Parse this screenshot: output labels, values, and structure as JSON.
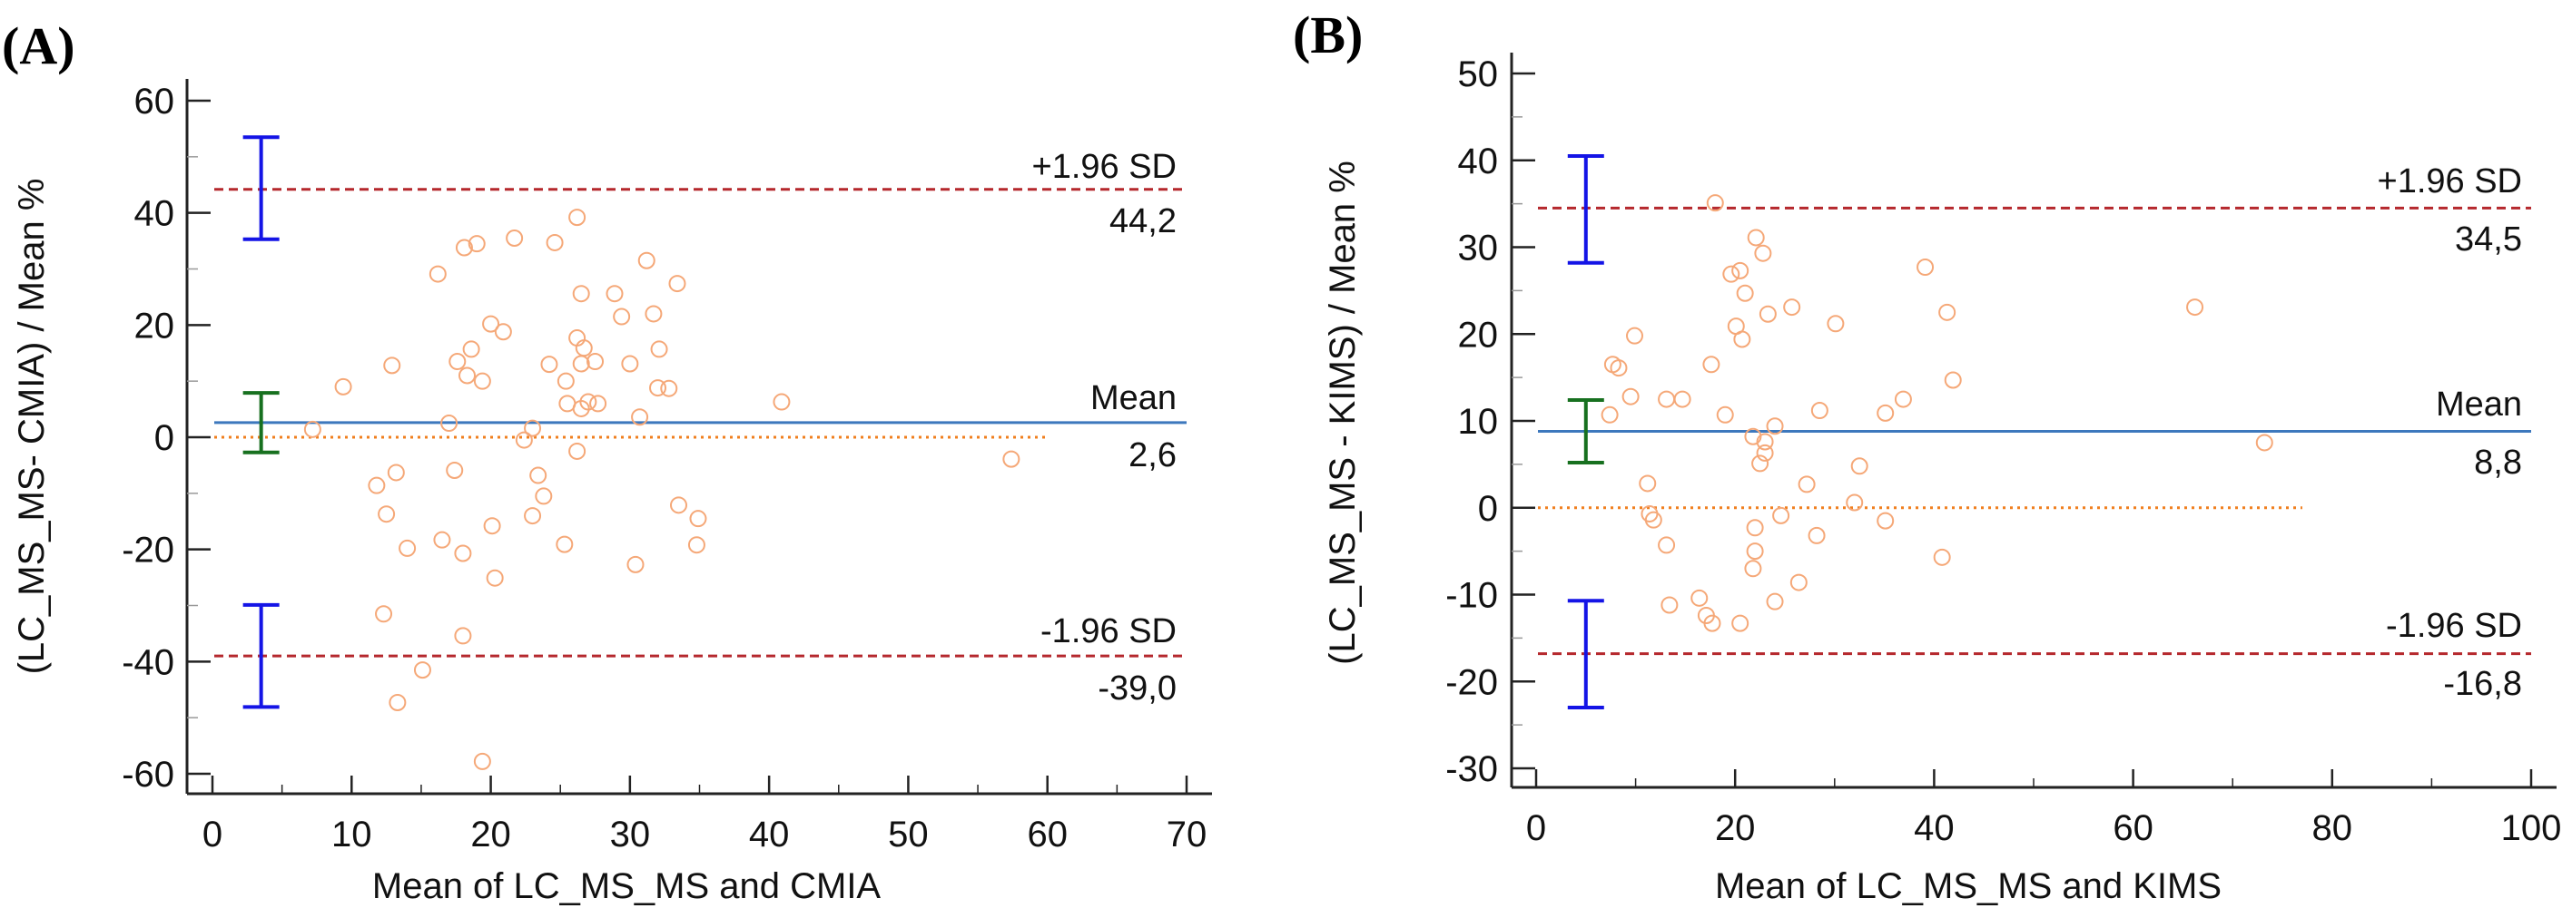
{
  "chart_data": [
    {
      "type": "scatter",
      "panel_label": "(A)",
      "title": "",
      "xlabel": "Mean of LC_MS_MS and CMIA",
      "ylabel": "(LC_MS_MS- CMIA) / Mean %",
      "xlim": [
        0,
        70
      ],
      "ylim": [
        -63,
        63
      ],
      "xticks": [
        0,
        10,
        20,
        30,
        40,
        50,
        60,
        70
      ],
      "xtick_labels": [
        "0",
        "10",
        "20",
        "30",
        "40",
        "50",
        "60",
        "70"
      ],
      "yticks": [
        -60,
        -40,
        -20,
        0,
        20,
        40,
        60
      ],
      "ytick_labels": [
        "-60",
        "-40",
        "-20",
        "0",
        "20",
        "40",
        "60"
      ],
      "grid": false,
      "reference_lines": {
        "upper_loa": {
          "value": 44.2,
          "name": "+1.96 SD",
          "value_label": "44,2",
          "style": "dashed",
          "color": "#b5282d"
        },
        "mean": {
          "value": 2.6,
          "name": "Mean",
          "value_label": "2,6",
          "style": "solid",
          "color": "#3d78bd"
        },
        "zero": {
          "value": 0,
          "style": "dotted",
          "color": "#f07f1e",
          "x_end": 60
        },
        "lower_loa": {
          "value": -39.0,
          "name": "-1.96 SD",
          "value_label": "-39,0",
          "style": "dashed",
          "color": "#b5282d"
        }
      },
      "confidence_intervals": [
        {
          "name": "upper-loa-ci",
          "x": 3.5,
          "low": 35.3,
          "high": 53.5,
          "color": "#1414e6"
        },
        {
          "name": "mean-ci",
          "x": 3.5,
          "low": -2.7,
          "high": 7.9,
          "color": "#17701f"
        },
        {
          "name": "lower-loa-ci",
          "x": 3.5,
          "low": -48.1,
          "high": -29.9,
          "color": "#1414e6"
        }
      ],
      "marker_color": "#f5a878",
      "points": [
        [
          7.2,
          1.4
        ],
        [
          9.4,
          9.0
        ],
        [
          12.9,
          12.8
        ],
        [
          11.8,
          -8.6
        ],
        [
          13.2,
          -6.3
        ],
        [
          12.5,
          -13.7
        ],
        [
          14.0,
          -19.8
        ],
        [
          12.3,
          -31.5
        ],
        [
          13.3,
          -47.3
        ],
        [
          15.1,
          -41.5
        ],
        [
          16.2,
          29.1
        ],
        [
          17.0,
          2.5
        ],
        [
          17.4,
          -5.9
        ],
        [
          16.5,
          -18.3
        ],
        [
          17.6,
          13.5
        ],
        [
          18.1,
          33.8
        ],
        [
          19.0,
          34.5
        ],
        [
          18.3,
          11.0
        ],
        [
          18.6,
          15.7
        ],
        [
          19.4,
          10.0
        ],
        [
          18.0,
          -20.7
        ],
        [
          18.0,
          -35.4
        ],
        [
          20.0,
          20.2
        ],
        [
          20.9,
          18.8
        ],
        [
          20.1,
          -15.8
        ],
        [
          20.3,
          -25.1
        ],
        [
          19.4,
          -57.8
        ],
        [
          21.7,
          35.5
        ],
        [
          22.4,
          -0.5
        ],
        [
          23.0,
          1.6
        ],
        [
          23.4,
          -6.8
        ],
        [
          23.8,
          -10.5
        ],
        [
          23.0,
          -14.0
        ],
        [
          24.2,
          13.0
        ],
        [
          24.6,
          34.7
        ],
        [
          25.3,
          -19.1
        ],
        [
          25.4,
          10.0
        ],
        [
          25.5,
          6.0
        ],
        [
          26.2,
          17.7
        ],
        [
          26.2,
          39.2
        ],
        [
          26.5,
          25.6
        ],
        [
          26.7,
          15.9
        ],
        [
          26.5,
          13.1
        ],
        [
          26.5,
          5.1
        ],
        [
          26.2,
          -2.5
        ],
        [
          27.0,
          6.3
        ],
        [
          27.5,
          13.5
        ],
        [
          27.7,
          6.0
        ],
        [
          28.9,
          25.6
        ],
        [
          29.4,
          21.5
        ],
        [
          30.0,
          13.1
        ],
        [
          30.7,
          3.6
        ],
        [
          30.4,
          -22.7
        ],
        [
          31.2,
          31.5
        ],
        [
          31.7,
          22.0
        ],
        [
          32.1,
          15.7
        ],
        [
          32.0,
          8.8
        ],
        [
          32.8,
          8.7
        ],
        [
          33.4,
          27.4
        ],
        [
          33.5,
          -12.1
        ],
        [
          34.9,
          -14.5
        ],
        [
          34.8,
          -19.2
        ],
        [
          40.9,
          6.3
        ],
        [
          57.4,
          -3.9
        ]
      ]
    },
    {
      "type": "scatter",
      "panel_label": "(B)",
      "title": "",
      "xlabel": "Mean of LC_MS_MS and KIMS",
      "ylabel": "(LC_MS_MS - KIMS) / Mean %",
      "xlim": [
        0,
        100
      ],
      "ylim": [
        -32,
        52
      ],
      "xticks": [
        0,
        20,
        40,
        60,
        80,
        100
      ],
      "xtick_labels": [
        "0",
        "20",
        "40",
        "60",
        "80",
        "100"
      ],
      "yticks": [
        -30,
        -20,
        -10,
        0,
        10,
        20,
        30,
        40,
        50
      ],
      "ytick_labels": [
        "-30",
        "-20",
        "-10",
        "0",
        "10",
        "20",
        "30",
        "40",
        "50"
      ],
      "grid": false,
      "reference_lines": {
        "upper_loa": {
          "value": 34.5,
          "name": "+1.96 SD",
          "value_label": "34,5",
          "style": "dashed",
          "color": "#b5282d"
        },
        "mean": {
          "value": 8.8,
          "name": "Mean",
          "value_label": "8,8",
          "style": "solid",
          "color": "#3d78bd"
        },
        "zero": {
          "value": 0,
          "style": "dotted",
          "color": "#f07f1e",
          "x_end": 77
        },
        "lower_loa": {
          "value": -16.8,
          "name": "-1.96 SD",
          "value_label": "-16,8",
          "style": "dashed",
          "color": "#b5282d"
        }
      },
      "confidence_intervals": [
        {
          "name": "upper-loa-ci",
          "x": 5,
          "low": 28.2,
          "high": 40.5,
          "color": "#1414e6"
        },
        {
          "name": "mean-ci",
          "x": 5,
          "low": 5.2,
          "high": 12.4,
          "color": "#17701f"
        },
        {
          "name": "lower-loa-ci",
          "x": 5,
          "low": -23.0,
          "high": -10.7,
          "color": "#1414e6"
        }
      ],
      "marker_color": "#f5a878",
      "points": [
        [
          18.0,
          35.1
        ],
        [
          22.1,
          31.1
        ],
        [
          22.8,
          29.3
        ],
        [
          19.6,
          26.9
        ],
        [
          20.5,
          27.3
        ],
        [
          21.0,
          24.7
        ],
        [
          23.3,
          22.3
        ],
        [
          25.7,
          23.1
        ],
        [
          20.1,
          20.9
        ],
        [
          20.7,
          19.4
        ],
        [
          30.1,
          21.2
        ],
        [
          39.1,
          27.7
        ],
        [
          41.3,
          22.5
        ],
        [
          66.2,
          23.1
        ],
        [
          9.9,
          19.8
        ],
        [
          7.7,
          16.5
        ],
        [
          8.3,
          16.1
        ],
        [
          17.6,
          16.5
        ],
        [
          41.9,
          14.7
        ],
        [
          9.5,
          12.8
        ],
        [
          13.1,
          12.5
        ],
        [
          14.7,
          12.5
        ],
        [
          36.9,
          12.5
        ],
        [
          28.5,
          11.2
        ],
        [
          35.1,
          10.9
        ],
        [
          7.4,
          10.7
        ],
        [
          19.0,
          10.7
        ],
        [
          24.0,
          9.4
        ],
        [
          21.8,
          8.2
        ],
        [
          23.0,
          7.6
        ],
        [
          23.0,
          6.3
        ],
        [
          22.5,
          5.1
        ],
        [
          32.5,
          4.8
        ],
        [
          11.2,
          2.8
        ],
        [
          27.2,
          2.7
        ],
        [
          32.0,
          0.6
        ],
        [
          11.4,
          -0.7
        ],
        [
          11.8,
          -1.4
        ],
        [
          24.6,
          -0.9
        ],
        [
          35.1,
          -1.5
        ],
        [
          22.0,
          -2.3
        ],
        [
          28.2,
          -3.2
        ],
        [
          13.1,
          -4.3
        ],
        [
          22.0,
          -5.0
        ],
        [
          40.8,
          -5.7
        ],
        [
          21.8,
          -7.0
        ],
        [
          26.4,
          -8.6
        ],
        [
          16.4,
          -10.4
        ],
        [
          13.4,
          -11.2
        ],
        [
          24.0,
          -10.8
        ],
        [
          17.1,
          -12.4
        ],
        [
          17.7,
          -13.3
        ],
        [
          20.5,
          -13.3
        ],
        [
          73.2,
          7.5
        ]
      ]
    }
  ]
}
